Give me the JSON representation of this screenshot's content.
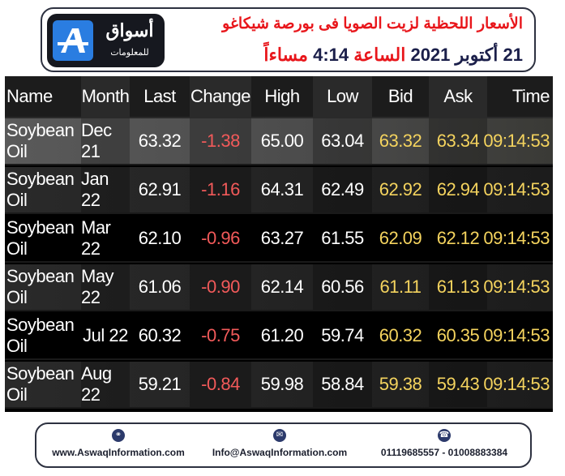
{
  "header": {
    "logo_word": "أسواق",
    "logo_sub": "للمعلومات",
    "title": "الأسعار اللحظية لزيت الصويا فى بورصة شيكاغو",
    "date_day": "21",
    "date_month": "أكتوبر",
    "date_year": "2021",
    "time_label": "الساعة",
    "time_value": "4:14",
    "time_suffix": "مساءاً"
  },
  "table": {
    "columns": [
      "Name",
      "Month",
      "Last",
      "Change",
      "High",
      "Low",
      "Bid",
      "Ask",
      "Time"
    ],
    "rows": [
      {
        "name": "Soybean Oil",
        "month": "Dec 21",
        "last": "63.32",
        "change": "-1.38",
        "high": "65.00",
        "low": "63.04",
        "bid": "63.32",
        "ask": "63.34",
        "time": "09:14:53"
      },
      {
        "name": "Soybean Oil",
        "month": "Jan 22",
        "last": "62.91",
        "change": "-1.16",
        "high": "64.31",
        "low": "62.49",
        "bid": "62.92",
        "ask": "62.94",
        "time": "09:14:53"
      },
      {
        "name": "Soybean Oil",
        "month": "Mar 22",
        "last": "62.10",
        "change": "-0.96",
        "high": "63.27",
        "low": "61.55",
        "bid": "62.09",
        "ask": "62.12",
        "time": "09:14:53"
      },
      {
        "name": "Soybean Oil",
        "month": "May 22",
        "last": "61.06",
        "change": "-0.90",
        "high": "62.14",
        "low": "60.56",
        "bid": "61.11",
        "ask": "61.13",
        "time": "09:14:53"
      },
      {
        "name": "Soybean Oil",
        "month": "Jul 22",
        "last": "60.32",
        "change": "-0.75",
        "high": "61.20",
        "low": "59.74",
        "bid": "60.32",
        "ask": "60.35",
        "time": "09:14:53"
      },
      {
        "name": "Soybean Oil",
        "month": "Aug 22",
        "last": "59.21",
        "change": "-0.84",
        "high": "59.98",
        "low": "58.84",
        "bid": "59.38",
        "ask": "59.43",
        "time": "09:14:53"
      }
    ]
  },
  "footer": {
    "website": "www.AswaqInformation.com",
    "email": "Info@AswaqInformation.com",
    "phones": "01119685557 - 01008883384",
    "icons": [
      "globe-icon",
      "mail-icon",
      "phone-icon"
    ]
  },
  "colors": {
    "negative": "#f25a5a",
    "bid_ask_time": "#f4d35e",
    "title_red": "#e8161b",
    "navy": "#1b1f4a"
  }
}
